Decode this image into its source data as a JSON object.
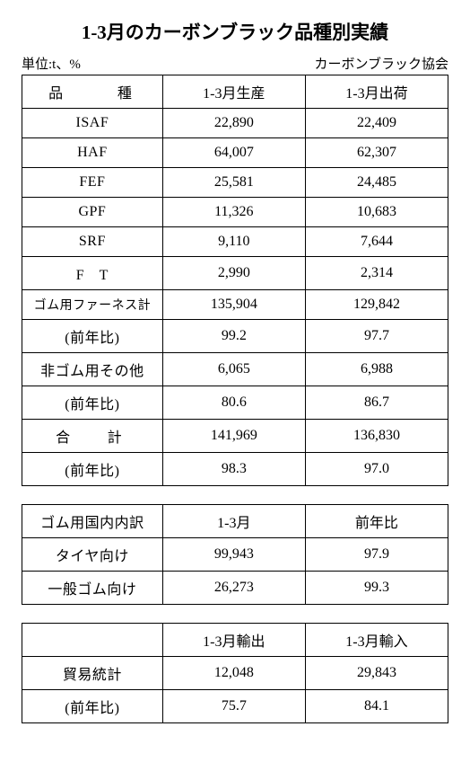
{
  "title": "1-3月のカーボンブラック品種別実績",
  "unit_label": "単位:t、%",
  "source_label": "カーボンブラック協会",
  "table1": {
    "headers": [
      "品　種",
      "1-3月生産",
      "1-3月出荷"
    ],
    "rows": [
      {
        "label": "ISAF",
        "c1": "22,890",
        "c2": "22,409"
      },
      {
        "label": "HAF",
        "c1": "64,007",
        "c2": "62,307"
      },
      {
        "label": "FEF",
        "c1": "25,581",
        "c2": "24,485"
      },
      {
        "label": "GPF",
        "c1": "11,326",
        "c2": "10,683"
      },
      {
        "label": "SRF",
        "c1": "9,110",
        "c2": "7,644"
      },
      {
        "label": "F　T",
        "c1": "2,990",
        "c2": "2,314"
      },
      {
        "label": "ゴム用ファーネス計",
        "c1": "135,904",
        "c2": "129,842",
        "small": true
      },
      {
        "label": "(前年比)",
        "c1": "99.2",
        "c2": "97.7"
      },
      {
        "label": "非ゴム用その他",
        "c1": "6,065",
        "c2": "6,988"
      },
      {
        "label": "(前年比)",
        "c1": "80.6",
        "c2": "86.7"
      },
      {
        "label": "合　計",
        "c1": "141,969",
        "c2": "136,830"
      },
      {
        "label": "(前年比)",
        "c1": "98.3",
        "c2": "97.0"
      }
    ]
  },
  "table2": {
    "headers": [
      "ゴム用国内内訳",
      "1-3月",
      "前年比"
    ],
    "rows": [
      {
        "label": "タイヤ向け",
        "c1": "99,943",
        "c2": "97.9"
      },
      {
        "label": "一般ゴム向け",
        "c1": "26,273",
        "c2": "99.3"
      }
    ]
  },
  "table3": {
    "headers": [
      "",
      "1-3月輸出",
      "1-3月輸入"
    ],
    "rows": [
      {
        "label": "貿易統計",
        "c1": "12,048",
        "c2": "29,843"
      },
      {
        "label": "(前年比)",
        "c1": "75.7",
        "c2": "84.1"
      }
    ]
  },
  "colors": {
    "text": "#000000",
    "border": "#000000",
    "background": "#ffffff"
  }
}
